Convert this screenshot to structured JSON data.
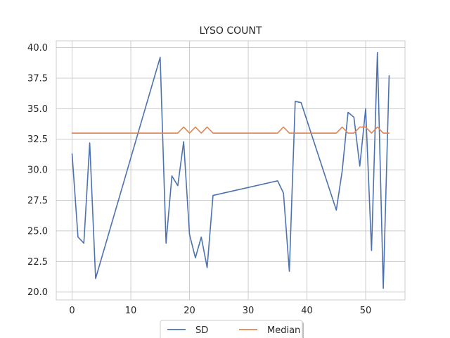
{
  "chart_data": {
    "type": "line",
    "title": "LYSO COUNT",
    "xlabel": "",
    "ylabel": "",
    "xlim": [
      -2.7,
      56.7
    ],
    "ylim": [
      19.35,
      40.55
    ],
    "xticks": [
      0,
      10,
      20,
      30,
      40,
      50
    ],
    "yticks": [
      20.0,
      22.5,
      25.0,
      27.5,
      30.0,
      32.5,
      35.0,
      37.5,
      40.0
    ],
    "xtick_labels": [
      "0",
      "10",
      "20",
      "30",
      "40",
      "50"
    ],
    "ytick_labels": [
      "20.0",
      "22.5",
      "25.0",
      "27.5",
      "30.0",
      "32.5",
      "35.0",
      "37.5",
      "40.0"
    ],
    "grid": true,
    "legend_position": "bottom-center",
    "series": [
      {
        "name": "SD",
        "color": "#4c72b0",
        "x": [
          0,
          1,
          2,
          3,
          4,
          15,
          16,
          17,
          18,
          19,
          20,
          21,
          22,
          23,
          24,
          35,
          36,
          37,
          38,
          39,
          45,
          46,
          47,
          48,
          49,
          50,
          51,
          52,
          53,
          54
        ],
        "y": [
          31.3,
          24.5,
          24.0,
          32.2,
          21.1,
          39.2,
          24.0,
          29.5,
          28.7,
          32.3,
          24.7,
          22.8,
          24.5,
          22.0,
          27.9,
          29.1,
          28.1,
          21.7,
          35.6,
          35.5,
          26.7,
          29.9,
          34.7,
          34.3,
          30.3,
          35.0,
          23.4,
          39.6,
          20.3,
          37.7
        ]
      },
      {
        "name": "Median",
        "color": "#dd8452",
        "x": [
          0,
          1,
          2,
          3,
          4,
          15,
          16,
          17,
          18,
          19,
          20,
          21,
          22,
          23,
          24,
          35,
          36,
          37,
          38,
          39,
          45,
          46,
          47,
          48,
          49,
          50,
          51,
          52,
          53,
          54
        ],
        "y": [
          33.0,
          33.0,
          33.0,
          33.0,
          33.0,
          33.0,
          33.0,
          33.0,
          33.0,
          33.5,
          33.0,
          33.5,
          33.0,
          33.5,
          33.0,
          33.0,
          33.5,
          33.0,
          33.0,
          33.0,
          33.0,
          33.5,
          33.0,
          33.0,
          33.5,
          33.5,
          33.0,
          33.5,
          33.0,
          33.0
        ]
      }
    ]
  }
}
